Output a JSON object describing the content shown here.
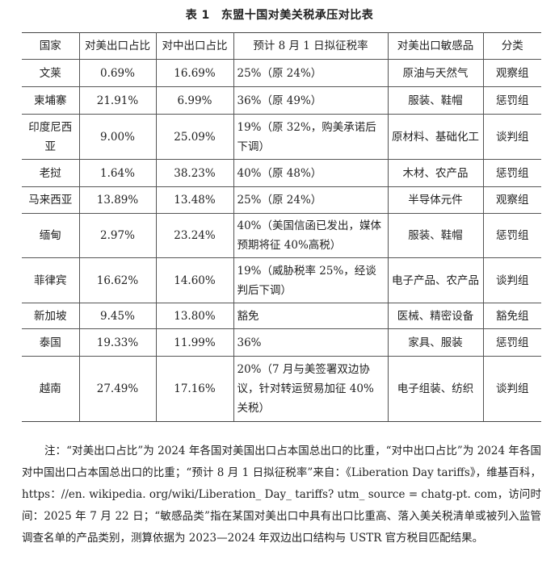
{
  "title": {
    "number": "表 1",
    "text": "东盟十国对美关税承压对比表"
  },
  "table": {
    "headers": [
      "国家",
      "对美出口占比",
      "对中出口占比",
      "预计 8 月 1 日拟征税率",
      "对美出口敏感品",
      "分类"
    ],
    "rows": [
      {
        "country": "文莱",
        "us_share": "0.69%",
        "cn_share": "16.69%",
        "rate": "25%（原 24%）",
        "goods": "原油与天然气",
        "group": "观察组"
      },
      {
        "country": "柬埔寨",
        "us_share": "21.91%",
        "cn_share": "6.99%",
        "rate": "36%（原 49%）",
        "goods": "服装、鞋帽",
        "group": "惩罚组"
      },
      {
        "country": "印度尼西亚",
        "us_share": "9.00%",
        "cn_share": "25.09%",
        "rate": "19%（原 32%，购美承诺后下调）",
        "goods": "原材料、基础化工",
        "group": "谈判组"
      },
      {
        "country": "老挝",
        "us_share": "1.64%",
        "cn_share": "38.23%",
        "rate": "40%（原 48%）",
        "goods": "木材、农产品",
        "group": "惩罚组"
      },
      {
        "country": "马来西亚",
        "us_share": "13.89%",
        "cn_share": "13.48%",
        "rate": "25%（原 24%）",
        "goods": "半导体元件",
        "group": "观察组"
      },
      {
        "country": "缅甸",
        "us_share": "2.97%",
        "cn_share": "23.24%",
        "rate": "40%（美国信函已发出，媒体预期将征 40%高税）",
        "goods": "服装、鞋帽",
        "group": "惩罚组"
      },
      {
        "country": "菲律宾",
        "us_share": "16.62%",
        "cn_share": "14.60%",
        "rate": "19%（威胁税率 25%，经谈判后下调）",
        "goods": "电子产品、农产品",
        "group": "谈判组"
      },
      {
        "country": "新加坡",
        "us_share": "9.45%",
        "cn_share": "13.80%",
        "rate": "豁免",
        "goods": "医械、精密设备",
        "group": "豁免组"
      },
      {
        "country": "泰国",
        "us_share": "19.33%",
        "cn_share": "11.99%",
        "rate": "36%",
        "goods": "家具、服装",
        "group": "惩罚组"
      },
      {
        "country": "越南",
        "us_share": "27.49%",
        "cn_share": "17.16%",
        "rate": "20%（7 月与美签署双边协议，针对转运贸易加征 40%关税）",
        "goods": "电子组装、纺织",
        "group": "谈判组"
      }
    ]
  },
  "note": "注：“对美出口占比”为 2024 年各国对美国出口占本国总出口的比重，“对中出口占比”为 2024 年各国对中国出口占本国总出口的比重；“预计 8 月 1 日拟征税率”来自：《Liberation Day tariffs》，维基百科，https：//en. wikipedia. org/wiki/Liberation_ Day_ tariffs? utm_ source = chatg-pt. com，访问时间：2025 年 7 月 22 日；“敏感品类”指在某国对美出口中具有出口比重高、落入美关税清单或被列入监管调查名单的产品类别，测算依据为 2023—2024 年双边出口结构与 USTR 官方税目匹配结果。"
}
